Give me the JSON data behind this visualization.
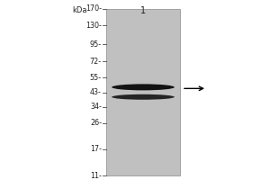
{
  "outer_bg": "#ffffff",
  "gel_bg": "#c0c0c0",
  "band_color": "#0a0a0a",
  "label_color": "#222222",
  "mw_labels": [
    "170-",
    "130-",
    "95-",
    "72-",
    "55-",
    "43-",
    "34-",
    "26-",
    "17-",
    "11-"
  ],
  "mw_values": [
    170,
    130,
    95,
    72,
    55,
    43,
    34,
    26,
    17,
    11
  ],
  "kda_label": "kDa",
  "lane_label": "1",
  "band1_mw": 47,
  "band2_mw": 40,
  "band1_alpha": 0.95,
  "band2_alpha": 0.85,
  "arrow_mw": 46,
  "font_size_mw": 5.8,
  "font_size_lane": 7.0,
  "font_size_kda": 6.0
}
